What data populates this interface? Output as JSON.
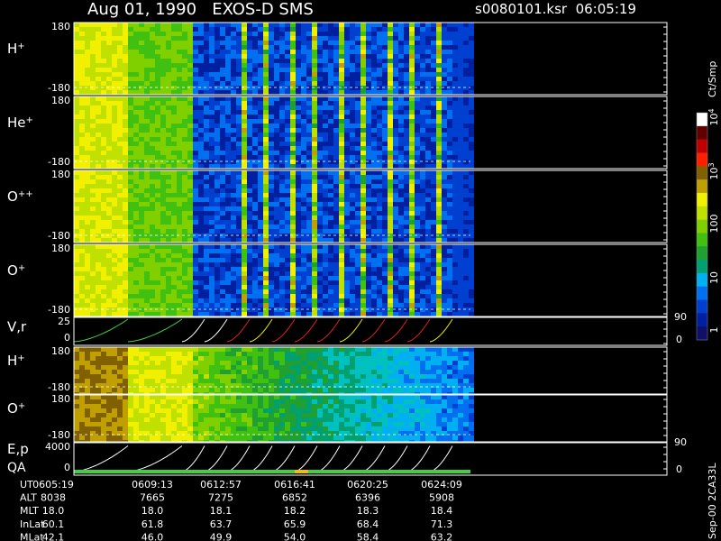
{
  "header": {
    "title": "Aug 01, 1990   EXOS-D SMS",
    "file": "s0080101.ksr  06:05:19"
  },
  "panels": [
    {
      "label": "H",
      "sup": "+",
      "top": "180",
      "bottom": "-180"
    },
    {
      "label": "He",
      "sup": "+",
      "top": "180",
      "bottom": "-180"
    },
    {
      "label": "O",
      "sup": "++",
      "top": "180",
      "bottom": "-180"
    },
    {
      "label": "O",
      "sup": "+",
      "top": "180",
      "bottom": "-180"
    },
    {
      "label": "V,r",
      "top": "25",
      "bottom": "0",
      "right_top": "90",
      "right_bottom": "0"
    },
    {
      "label": "H",
      "sup": "+",
      "top": "180",
      "bottom": "-180"
    },
    {
      "label": "O",
      "sup": "+",
      "top": "180",
      "bottom": "-180"
    },
    {
      "label": "E,p",
      "label2": "QA",
      "top": "4000",
      "bottom": "0",
      "right_top": "90",
      "right_bottom": "0"
    }
  ],
  "colorbar": {
    "unit": "Ct/Smp",
    "labels": [
      {
        "base": "10",
        "sup": "4"
      },
      {
        "base": "10",
        "sup": "3"
      },
      {
        "base": "100"
      },
      {
        "base": "10"
      },
      {
        "base": "1"
      }
    ]
  },
  "footer_note": "Sep-00 2CA33L",
  "table": {
    "row_labels": [
      "UT",
      "ALT",
      "MLT",
      "InLat",
      "MLat"
    ],
    "rows": [
      [
        "0605:19",
        "0609:13",
        "0612:57",
        "0616:41",
        "0620:25",
        "0624:09"
      ],
      [
        "8038",
        "7665",
        "7275",
        "6852",
        "6396",
        "5908"
      ],
      [
        "18.0",
        "18.0",
        "18.1",
        "18.2",
        "18.3",
        "18.4"
      ],
      [
        "60.1",
        "61.8",
        "63.7",
        "65.9",
        "68.4",
        "71.3"
      ],
      [
        "42.1",
        "46.0",
        "49.9",
        "54.0",
        "58.4",
        "63.2"
      ]
    ]
  }
}
